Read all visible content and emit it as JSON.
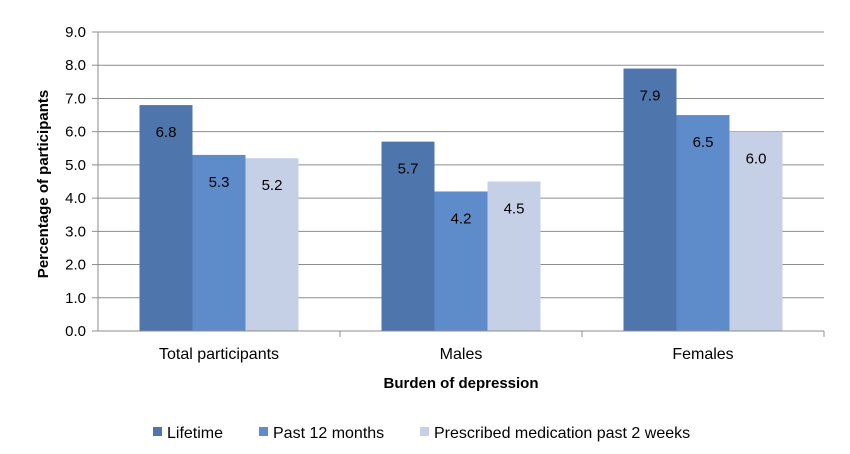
{
  "chart_data": {
    "type": "bar",
    "title": "",
    "xlabel": "Burden of depression",
    "ylabel": "Percentage of participants",
    "ylim": [
      0,
      9
    ],
    "yticks": [
      "0.0",
      "1.0",
      "2.0",
      "3.0",
      "4.0",
      "5.0",
      "6.0",
      "7.0",
      "8.0",
      "9.0"
    ],
    "grid": "horizontal",
    "legend_position": "bottom",
    "categories": [
      "Total participants",
      "Males",
      "Females"
    ],
    "series": [
      {
        "name": "Lifetime",
        "values": [
          6.8,
          5.7,
          7.9
        ],
        "labels": [
          "6.8",
          "5.7",
          "7.9"
        ],
        "color": "#4F76AC"
      },
      {
        "name": "Past 12 months",
        "values": [
          5.3,
          4.2,
          6.5
        ],
        "labels": [
          "5.3",
          "4.2",
          "6.5"
        ],
        "color": "#5E8CCB"
      },
      {
        "name": "Prescribed medication past 2 weeks",
        "values": [
          5.2,
          4.5,
          6.0
        ],
        "labels": [
          "5.2",
          "4.5",
          "6.0"
        ],
        "color": "#C5CFE6"
      }
    ]
  }
}
